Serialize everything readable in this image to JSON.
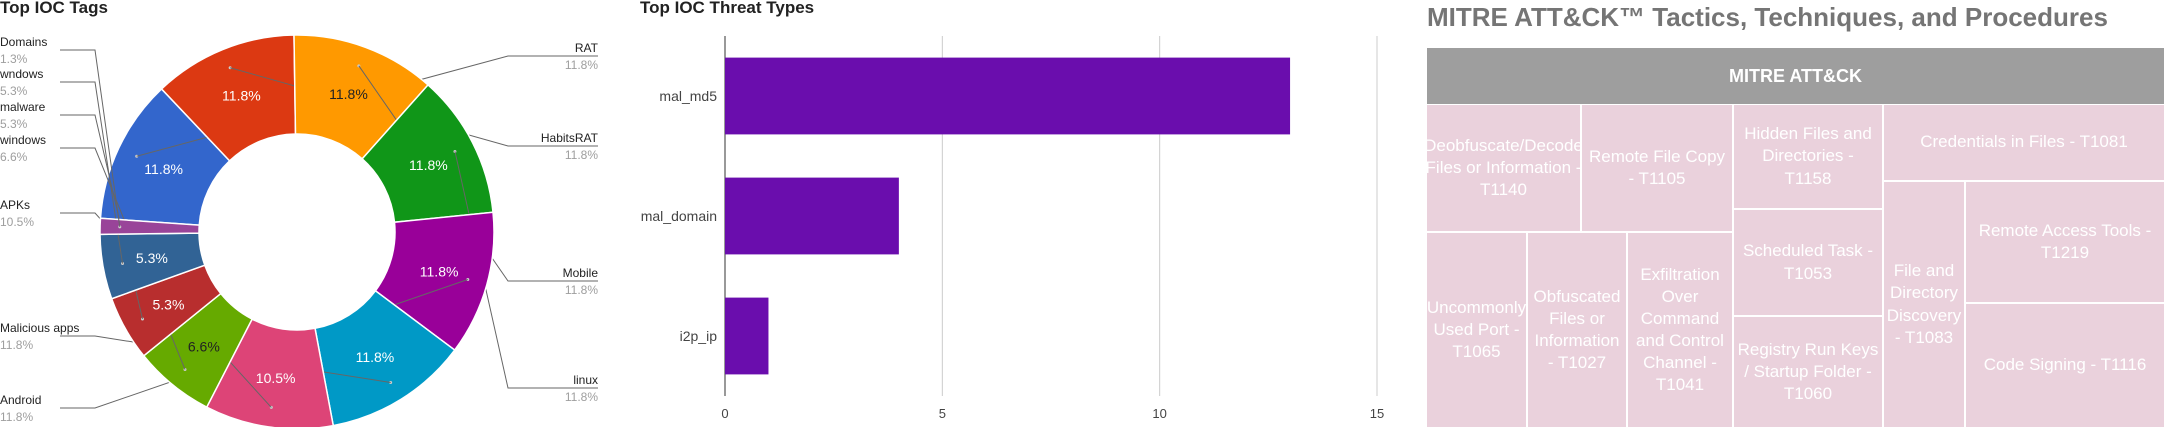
{
  "chart_data": [
    {
      "type": "pie",
      "title": "Top IOC Tags",
      "donut": true,
      "slices": [
        {
          "label": "RAT",
          "value": 11.8,
          "pct": "11.8%",
          "color": "#3366cc"
        },
        {
          "label": "HabitsRAT",
          "value": 11.8,
          "pct": "11.8%",
          "color": "#dc3912"
        },
        {
          "label": "Mobile",
          "value": 11.8,
          "pct": "11.8%",
          "color": "#ff9900"
        },
        {
          "label": "linux",
          "value": 11.8,
          "pct": "11.8%",
          "color": "#109618"
        },
        {
          "label": "Android",
          "value": 11.8,
          "pct": "11.8%",
          "color": "#990099"
        },
        {
          "label": "Malicious apps",
          "value": 11.8,
          "pct": "11.8%",
          "color": "#0099c6"
        },
        {
          "label": "APKs",
          "value": 10.5,
          "pct": "10.5%",
          "color": "#dd4477"
        },
        {
          "label": "windows",
          "value": 6.6,
          "pct": "6.6%",
          "color": "#66aa00"
        },
        {
          "label": "malware",
          "value": 5.3,
          "pct": "5.3%",
          "color": "#b82e2e"
        },
        {
          "label": "wndows",
          "value": 5.3,
          "pct": "5.3%",
          "color": "#316395"
        },
        {
          "label": "Domains",
          "value": 1.3,
          "pct": "1.3%",
          "color": "#994499"
        }
      ],
      "legend": "labels-outside"
    },
    {
      "type": "bar",
      "orientation": "horizontal",
      "title": "Top IOC Threat Types",
      "categories": [
        "mal_md5",
        "mal_domain",
        "i2p_ip"
      ],
      "values": [
        13,
        4,
        1
      ],
      "xlim": [
        0,
        15
      ],
      "xticks": [
        "0",
        "5",
        "10",
        "15"
      ],
      "color": "#6a0dad",
      "grid": true
    }
  ],
  "mitre": {
    "title": "MITRE ATT&CK™ Tactics, Techniques, and Procedures",
    "header": "MITRE ATT&CK",
    "cells": [
      "Deobfuscate/Decode Files or Information - T1140",
      "Remote File Copy - T1105",
      "Hidden Files and Directories - T1158",
      "Credentials in Files - T1081",
      "Uncommonly Used Port - T1065",
      "Obfuscated Files or Information - T1027",
      "Exfiltration Over Command and Control Channel - T1041",
      "Scheduled Task - T1053",
      "Registry Run Keys / Startup Folder - T1060",
      "File and Directory Discovery - T1083",
      "Remote Access Tools - T1219",
      "Code Signing - T1116"
    ]
  }
}
